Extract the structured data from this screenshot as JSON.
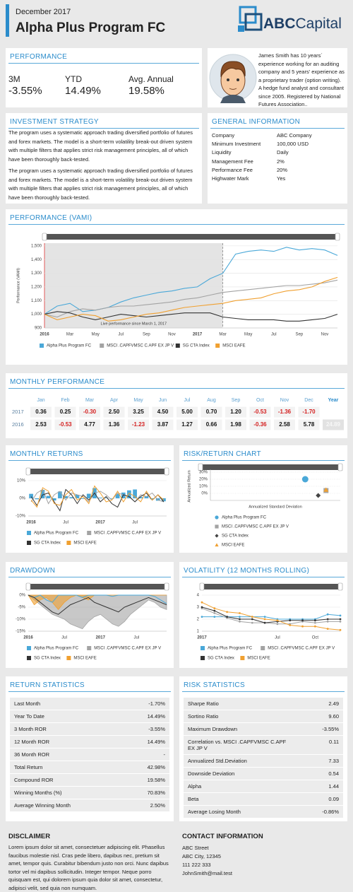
{
  "header": {
    "date": "December 2017",
    "title": "Alpha Plus Program FC",
    "logo_bold": "ABC",
    "logo_light": "Capital"
  },
  "performance": {
    "title": "PERFORMANCE",
    "items": [
      {
        "label": "3M",
        "value": "-3.55%"
      },
      {
        "label": "YTD",
        "value": "14.49%"
      },
      {
        "label": "Avg. Annual",
        "value": "19.58%"
      }
    ]
  },
  "bio": "James Smith has 10 years´ experience working for an auditing company and 5 years' experience as a proprietary trader (option writing). A hedge fund analyst and consultant since 2005. Registered by National Futures Association..",
  "strategy": {
    "title": "INVESTMENT STRATEGY",
    "paragraphs": [
      "The program uses a systematic approach trading diversified portfolio of futures and forex markets. The model is a short-term volatility break-out driven system with multiple filters that applies strict risk management principles, all of which have been thoroughly back-tested.",
      "The program uses a systematic approach trading diversified portfolio of futures and forex markets. The model is a short-term volatility break-out driven system with multiple filters that applies strict risk management principles, all of which have been thoroughly back-tested."
    ]
  },
  "general": {
    "title": "GENERAL INFORMATION",
    "rows": [
      [
        "Company",
        "ABC Company"
      ],
      [
        "Minimum Investment",
        "100,000 USD"
      ],
      [
        "Liquidity",
        "Daily"
      ],
      [
        "Management Fee",
        "2%"
      ],
      [
        "Performance Fee",
        "20%"
      ],
      [
        "Highwater Mark",
        "Yes"
      ]
    ]
  },
  "monthly_performance": {
    "title": "MONTHLY PERFORMANCE",
    "columns": [
      "Jan",
      "Feb",
      "Mar",
      "Apr",
      "May",
      "Jun",
      "Jul",
      "Aug",
      "Sep",
      "Oct",
      "Nov",
      "Dec",
      "Year"
    ],
    "rows": [
      {
        "year": "2017",
        "months": [
          "0.36",
          "0.25",
          "-0.30",
          "2.50",
          "3.25",
          "4.50",
          "5.00",
          "0.70",
          "1.20",
          "-0.53",
          "-1.36",
          "-1.70"
        ]
      },
      {
        "year": "2016",
        "months": [
          "2.53",
          "-0.53",
          "4.77",
          "1.36",
          "-1.23",
          "3.87",
          "1.27",
          "0.66",
          "1.98",
          "-0.36",
          "2.58",
          "5.78"
        ],
        "total": "24.89"
      }
    ]
  },
  "chart_data": [
    {
      "type": "line",
      "title": "PERFORMANCE (VAMI)",
      "y_label": "Performance (VAMI)",
      "annotation": "Live performance since March 1, 2017",
      "categories": [
        "2016",
        null,
        "Mar",
        null,
        "May",
        null,
        "Jul",
        null,
        "Sep",
        null,
        "Nov",
        null,
        "2017",
        null,
        "Mar",
        null,
        "May",
        null,
        "Jul",
        null,
        "Sep",
        null,
        "Nov",
        null
      ],
      "ylim": [
        900,
        1520
      ],
      "yticks": [
        900,
        {
          "value": 1000,
          "label": "1,000"
        },
        {
          "value": 1100,
          "label": "1,100"
        },
        {
          "value": 1200,
          "label": "1,200"
        },
        {
          "value": 1300,
          "label": "1,300"
        },
        {
          "value": 1400,
          "label": "1,400"
        },
        {
          "value": 1500,
          "label": "1,500"
        }
      ],
      "series": [
        {
          "name": "Alpha Plus Program FC",
          "color": "#4aa8d8",
          "values": [
            1000,
            1060,
            1080,
            1020,
            1030,
            1050,
            1090,
            1120,
            1140,
            1160,
            1170,
            1190,
            1200,
            1260,
            1300,
            1440,
            1460,
            1470,
            1460,
            1490,
            1470,
            1480,
            1470,
            1430
          ]
        },
        {
          "name": "MSCI .CAPFVMSC C.APF EX JP V",
          "color": "#a3a3a3",
          "values": [
            1000,
            980,
            1020,
            1040,
            1030,
            1050,
            1060,
            1060,
            1070,
            1080,
            1090,
            1110,
            1120,
            1140,
            1160,
            1170,
            1180,
            1190,
            1200,
            1210,
            1210,
            1220,
            1230,
            1250
          ]
        },
        {
          "name": "SG CTA Index",
          "color": "#333333",
          "values": [
            1000,
            1020,
            1010,
            980,
            960,
            980,
            1000,
            990,
            980,
            990,
            1000,
            1010,
            1010,
            1010,
            980,
            970,
            960,
            960,
            960,
            950,
            950,
            960,
            970,
            1000
          ]
        },
        {
          "name": "MSCI EAFE",
          "color": "#f0a030",
          "values": [
            1000,
            960,
            980,
            1000,
            990,
            950,
            960,
            980,
            1000,
            1010,
            1030,
            1050,
            1060,
            1070,
            1080,
            1100,
            1110,
            1120,
            1150,
            1170,
            1180,
            1200,
            1240,
            1270
          ]
        }
      ]
    },
    {
      "type": "combo",
      "title": "MONTHLY RETURNS",
      "categories": [
        "2016",
        null,
        null,
        null,
        null,
        null,
        "Jul",
        null,
        null,
        null,
        null,
        null,
        "2017",
        null,
        null,
        null,
        null,
        null,
        "Jul",
        null,
        null,
        null,
        null,
        null
      ],
      "ylim": [
        -10,
        10
      ],
      "yticks": [
        {
          "value": -10,
          "label": "-10%"
        },
        {
          "value": 0,
          "label": "0%"
        },
        {
          "value": 10,
          "label": "10%"
        }
      ],
      "series": [
        {
          "name": "Alpha Plus Program FC",
          "color": "#4aa8d8",
          "type": "bar",
          "values": [
            2.53,
            -0.53,
            4.77,
            1.36,
            -1.23,
            3.87,
            1.27,
            0.66,
            1.98,
            -0.36,
            2.58,
            5.78,
            0.36,
            0.25,
            -0.3,
            2.5,
            3.25,
            4.5,
            5.0,
            0.7,
            1.2,
            -0.53,
            -1.36,
            -1.7
          ]
        },
        {
          "name": "MSCI .CAPFVMSC C.APF EX JP V",
          "color": "#a3a3a3",
          "type": "line",
          "values": [
            -2,
            3,
            5,
            -3,
            2,
            4,
            -1,
            3,
            2,
            1,
            -2,
            3,
            4,
            2,
            -1,
            3,
            2,
            1,
            -2,
            2,
            1,
            3,
            -1,
            -2
          ]
        },
        {
          "name": "SG CTA Index",
          "color": "#333333",
          "type": "line",
          "values": [
            1,
            -4,
            2,
            3,
            -2,
            -7,
            5,
            2,
            -3,
            2,
            -1,
            3,
            -2,
            1,
            -3,
            -5,
            2,
            1,
            -2,
            1,
            3,
            -1,
            2,
            -2
          ]
        },
        {
          "name": "MSCI EAFE",
          "color": "#f0a030",
          "type": "line",
          "values": [
            -1,
            -5,
            6,
            4,
            -3,
            -4,
            2,
            5,
            -1,
            1,
            -3,
            7,
            3,
            -2,
            -1,
            4,
            -2,
            3,
            1,
            -2,
            4,
            -1,
            2,
            -1
          ]
        }
      ]
    },
    {
      "type": "scatter",
      "title": "RISK/RETURN CHART",
      "x_label": "Annualized Standard Deviation",
      "y_label": "Annualized Return",
      "xlim": [
        0,
        10
      ],
      "ylim": [
        -10,
        30
      ],
      "yticks": [
        {
          "value": 0,
          "label": "0%"
        },
        {
          "value": 10,
          "label": "10%"
        },
        {
          "value": 20,
          "label": "20%"
        },
        {
          "value": 30,
          "label": "30%"
        }
      ],
      "series": [
        {
          "name": "Alpha Plus Program FC",
          "color": "#4aa8d8",
          "marker": "circle",
          "x": 7.3,
          "y": 20
        },
        {
          "name": "MSCI .CAPFVMSC C.APF EX JP V",
          "color": "#a3a3a3",
          "marker": "square",
          "x": 8.9,
          "y": 4
        },
        {
          "name": "SG CTA Index",
          "color": "#444444",
          "marker": "diamond",
          "x": 8.3,
          "y": -3
        },
        {
          "name": "MSCI EAFE",
          "color": "#f0a030",
          "marker": "triangle",
          "x": 8.9,
          "y": 5
        }
      ]
    },
    {
      "type": "area",
      "title": "DRAWDOWN",
      "categories": [
        "2016",
        null,
        null,
        null,
        null,
        null,
        "Jul",
        null,
        null,
        null,
        null,
        null,
        "2017",
        null,
        null,
        null,
        null,
        null,
        "Jul",
        null,
        null,
        null,
        null,
        null
      ],
      "ylim": [
        -15,
        0
      ],
      "yticks": [
        {
          "value": -15,
          "label": "-15%"
        },
        {
          "value": -10,
          "label": "-10%"
        },
        {
          "value": -5,
          "label": "-5%"
        },
        {
          "value": 0,
          "label": "0%"
        }
      ],
      "series": [
        {
          "name": "Alpha Plus Program FC",
          "color": "#4aa8d8",
          "type": "line",
          "values": [
            0,
            -1,
            0,
            -2,
            -3,
            0,
            0,
            0,
            0,
            -1,
            0,
            0,
            0,
            0,
            -0.5,
            0,
            0,
            0,
            0,
            0,
            0,
            -0.5,
            -2,
            -3.5
          ]
        },
        {
          "name": "MSCI .CAPFVMSC C.APF EX JP V",
          "color": "#a3a3a3",
          "type": "area",
          "values": [
            0,
            -2,
            -4,
            -6,
            -8,
            -9,
            -10,
            -12,
            -13,
            -14,
            -11,
            -9,
            -8,
            -10,
            -12,
            -13,
            -11,
            -8,
            -6,
            -4,
            -2,
            -3,
            -5,
            -6
          ]
        },
        {
          "name": "SG CTA Index",
          "color": "#333333",
          "type": "line",
          "values": [
            0,
            -1,
            -3,
            -5,
            -7,
            -8,
            -6,
            -4,
            -3,
            -2,
            -1,
            -3,
            -4,
            -5,
            -6,
            -7,
            -5,
            -4,
            -3,
            -2,
            -1,
            -2,
            -3,
            -4
          ]
        },
        {
          "name": "MSCI EAFE",
          "color": "#f0a030",
          "type": "area",
          "values": [
            0,
            -4,
            -2,
            -1,
            -3,
            -6,
            -3,
            -1,
            0,
            -1,
            -2,
            0,
            0,
            0,
            0,
            0,
            0,
            0,
            0,
            0,
            0,
            0,
            0,
            0
          ]
        }
      ]
    },
    {
      "type": "line",
      "title": "VOLATILITY (12 MONTHS ROLLING)",
      "markers": true,
      "categories": [
        "2017",
        null,
        null,
        null,
        null,
        null,
        "Jul",
        null,
        null,
        "Oct",
        null,
        null
      ],
      "ylim": [
        1,
        4
      ],
      "yticks": [
        1,
        2,
        3,
        4
      ],
      "series": [
        {
          "name": "Alpha Plus Program FC",
          "color": "#4aa8d8",
          "values": [
            2.2,
            2.2,
            2.2,
            2.2,
            2.2,
            2.2,
            2.0,
            2.0,
            2.0,
            2.0,
            2.4,
            2.3
          ]
        },
        {
          "name": "MSCI .CAPFVMSC C.APF EX JP V",
          "color": "#a3a3a3",
          "values": [
            2.9,
            2.5,
            2.1,
            1.8,
            1.7,
            1.7,
            1.6,
            1.6,
            1.8,
            1.7,
            1.8,
            1.8
          ]
        },
        {
          "name": "SG CTA Index",
          "color": "#333333",
          "values": [
            3.0,
            2.7,
            2.2,
            2.0,
            2.0,
            1.7,
            1.8,
            1.9,
            1.9,
            1.9,
            2.0,
            2.0
          ]
        },
        {
          "name": "MSCI EAFE",
          "color": "#f0a030",
          "values": [
            3.4,
            2.9,
            2.6,
            2.5,
            2.2,
            2.0,
            1.9,
            1.5,
            1.4,
            1.4,
            1.2,
            1.1
          ]
        }
      ]
    }
  ],
  "return_statistics": {
    "title": "RETURN STATISTICS",
    "rows": [
      [
        "Last Month",
        "-1.70%"
      ],
      [
        "Year To Date",
        "14.49%"
      ],
      [
        "3 Month ROR",
        "-3.55%"
      ],
      [
        "12 Month ROR",
        "14.49%"
      ],
      [
        "36 Month ROR",
        "-"
      ],
      [
        "Total Return",
        "42.98%"
      ],
      [
        "Compound ROR",
        "19.58%"
      ],
      [
        "Winning Months (%)",
        "70.83%"
      ],
      [
        "Average Winning Month",
        "2.50%"
      ]
    ]
  },
  "risk_statistics": {
    "title": "RISK STATISTICS",
    "rows": [
      [
        "Sharpe Ratio",
        "2.49"
      ],
      [
        "Sortino Ratio",
        "9.60"
      ],
      [
        "Maximum Drawdown",
        "-3.55%"
      ],
      [
        "Correlation vs. MSCI .CAPFVMSC C.APF EX JP V",
        "0.11"
      ],
      [
        "Annualized Std.Deviation",
        "7.33"
      ],
      [
        "Downside Deviation",
        "0.54"
      ],
      [
        "Alpha",
        "1.44"
      ],
      [
        "Beta",
        "0.09"
      ],
      [
        "Average Losing Month",
        "-0.86%"
      ]
    ]
  },
  "disclaimer": {
    "title": "DISCLAIMER",
    "text": "Lorem ipsum dolor sit amet, consectetuer adipiscing elit. Phasellus faucibus molestie nisl. Cras pede libero, dapibus nec, pretium sit amet, tempor quis. Curabitur bibendum justo non orci. Nunc dapibus tortor vel mi dapibus sollicitudin. Integer tempor. Neque porro quisquam est, qui dolorem ipsum quia dolor sit amet, consectetur, adipisci velit, sed quia non numquam."
  },
  "contact": {
    "title": "CONTACT INFORMATION",
    "lines": [
      "ABC Street",
      "ABC City, 12345",
      "111 222 333",
      "JohnSmith@mail.test"
    ]
  }
}
